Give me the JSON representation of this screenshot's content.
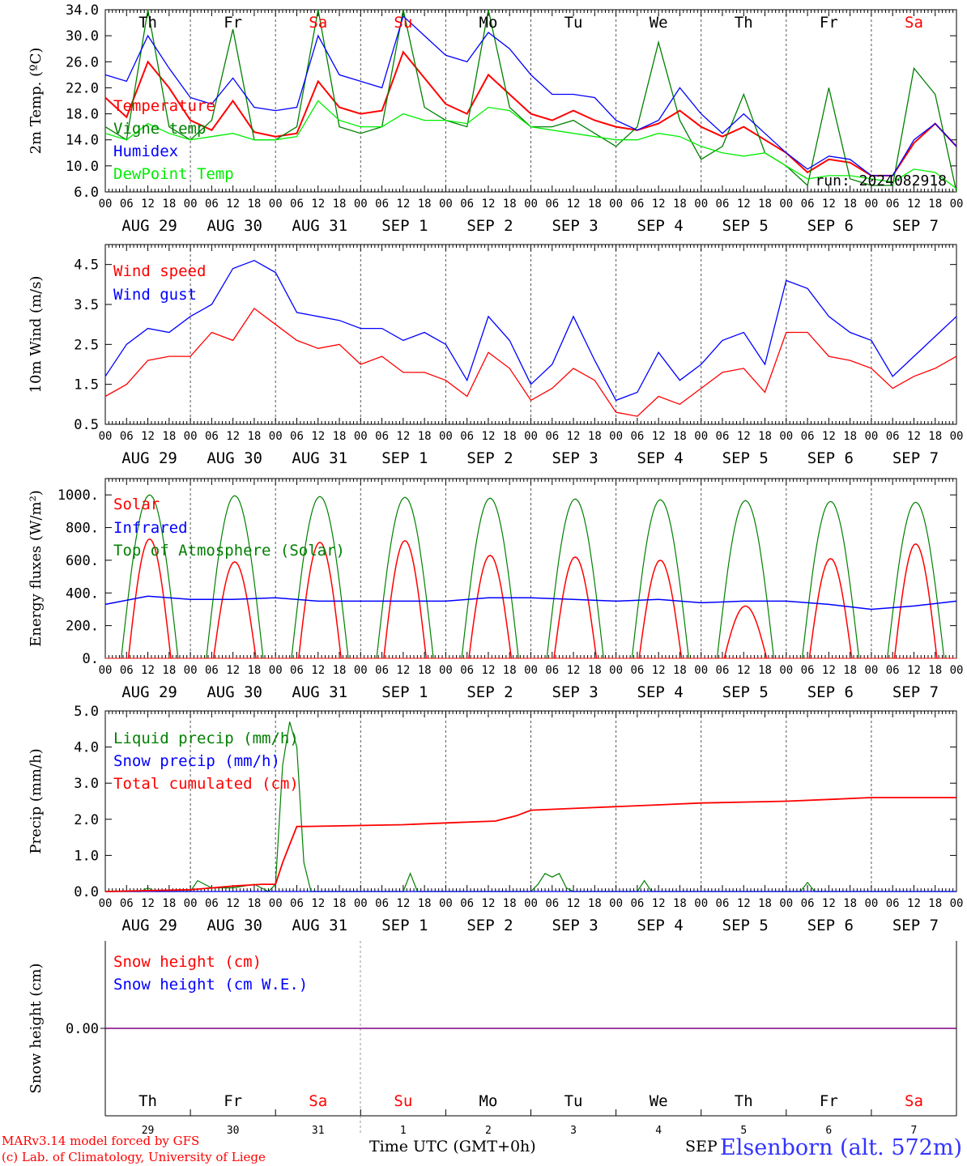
{
  "page": {
    "credit_line1": "MARv3.14 model forced by GFS",
    "credit_line2": "(c) Lab. of Climatology, University of Liege",
    "time_axis_label": "Time UTC (GMT+0h)",
    "month_label": "SEP",
    "station": "Elsenborn (alt. 572m)",
    "run_label": "run: 2024082918"
  },
  "colors": {
    "red": "#ff0000",
    "blue": "#0000ff",
    "dark_green": "#008000",
    "light_green": "#00ee00",
    "purple": "#800080",
    "sunday_red": "#ff0000"
  },
  "axis_common": {
    "hour_ticks": [
      "00",
      "06",
      "12",
      "18"
    ],
    "day_labels": [
      "AUG 29",
      "AUG 30",
      "AUG 31",
      "SEP  1",
      "SEP  2",
      "SEP  3",
      "SEP  4",
      "SEP  5",
      "SEP  6",
      "SEP  7"
    ],
    "weekdays": [
      "Th",
      "Fr",
      "Sa",
      "Su",
      "Mo",
      "Tu",
      "We",
      "Th",
      "Fr",
      "Sa"
    ],
    "weekend_flags": [
      false,
      false,
      true,
      true,
      false,
      false,
      false,
      false,
      false,
      true
    ],
    "day_numbers": [
      "29",
      "30",
      "31",
      "1",
      "2",
      "3",
      "4",
      "5",
      "6",
      "7"
    ]
  },
  "chart_data": [
    {
      "type": "line",
      "ylabel": "2m Temp. (ºC)",
      "ylim": [
        6,
        34
      ],
      "yticks": [
        "6.0",
        "10.0",
        "14.0",
        "18.0",
        "22.0",
        "26.0",
        "30.0",
        "34.0"
      ],
      "x_unit": "hours since Aug 29 00 UTC",
      "series": [
        {
          "name": "Temperature",
          "color": "#ff0000",
          "x": [
            0,
            6,
            12,
            18,
            24,
            30,
            36,
            42,
            48,
            54,
            60,
            66,
            72,
            78,
            84,
            90,
            96,
            102,
            108,
            114,
            120,
            126,
            132,
            138,
            144,
            150,
            156,
            162,
            168,
            174,
            180,
            186,
            192,
            198,
            204,
            210,
            216,
            222,
            228,
            234,
            240
          ],
          "y": [
            20.5,
            17.5,
            26,
            22,
            17,
            15.5,
            20,
            15.2,
            14.5,
            15,
            23,
            19,
            18,
            18.5,
            27.5,
            23.5,
            19.5,
            18,
            24,
            21,
            18,
            17,
            18.5,
            17,
            16,
            15.5,
            16.5,
            18.5,
            16,
            14.5,
            16,
            14,
            12,
            9,
            11,
            10.5,
            8.5,
            8.5,
            13.5,
            16.5,
            13
          ]
        },
        {
          "name": "Vigne temp",
          "color": "#008000",
          "x": [
            0,
            6,
            12,
            18,
            24,
            30,
            36,
            42,
            48,
            54,
            60,
            66,
            72,
            78,
            84,
            90,
            96,
            102,
            108,
            114,
            120,
            126,
            132,
            138,
            144,
            150,
            156,
            162,
            168,
            174,
            180,
            186,
            192,
            198,
            204,
            210,
            216,
            222,
            228,
            234,
            240
          ],
          "y": [
            16,
            14,
            34,
            16,
            14,
            17,
            31,
            14,
            14,
            16,
            34,
            16,
            15,
            16,
            34,
            19,
            17,
            16,
            34,
            19,
            16,
            16,
            17,
            15,
            13,
            16,
            29,
            17,
            11,
            13,
            21,
            12,
            10,
            7,
            22,
            8,
            7,
            7,
            25,
            21,
            6
          ]
        },
        {
          "name": "Humidex",
          "color": "#0000ff",
          "x": [
            0,
            6,
            12,
            18,
            24,
            30,
            36,
            42,
            48,
            54,
            60,
            66,
            72,
            78,
            84,
            90,
            96,
            102,
            108,
            114,
            120,
            126,
            132,
            138,
            144,
            150,
            156,
            162,
            168,
            174,
            180,
            186,
            192,
            198,
            204,
            210,
            216,
            222,
            228,
            234,
            240
          ],
          "y": [
            24,
            23,
            30,
            25,
            20.5,
            19.5,
            23.5,
            19,
            18.5,
            19,
            30,
            24,
            23,
            22,
            33,
            30,
            27,
            26,
            30.5,
            28,
            24,
            21,
            21,
            20.5,
            17,
            15.5,
            17,
            22,
            18,
            15,
            18,
            15,
            12,
            9.5,
            11.5,
            11,
            8.5,
            8.5,
            14,
            16.5,
            13
          ]
        },
        {
          "name": "DewPoint Temp",
          "color": "#00ee00",
          "x": [
            0,
            6,
            12,
            18,
            24,
            30,
            36,
            42,
            48,
            54,
            60,
            66,
            72,
            78,
            84,
            90,
            96,
            102,
            108,
            114,
            120,
            126,
            132,
            138,
            144,
            150,
            156,
            162,
            168,
            174,
            180,
            186,
            192,
            198,
            204,
            210,
            216,
            222,
            228,
            234,
            240
          ],
          "y": [
            15,
            14,
            16.5,
            15,
            14,
            14.5,
            15,
            14,
            14,
            14.5,
            20,
            17,
            16,
            16,
            18,
            17,
            17,
            16.5,
            19,
            18.5,
            16,
            15.5,
            15,
            14.5,
            14,
            14,
            15,
            14.5,
            13,
            12,
            11.5,
            12,
            10,
            8,
            8.5,
            8.5,
            8,
            7.5,
            9.5,
            9,
            6.5
          ]
        }
      ]
    },
    {
      "type": "line",
      "ylabel": "10m Wind (m/s)",
      "ylim": [
        0.5,
        5.0
      ],
      "yticks": [
        "0.5",
        "1.5",
        "2.5",
        "3.5",
        "4.5"
      ],
      "series": [
        {
          "name": "Wind speed",
          "color": "#ff0000",
          "x": [
            0,
            6,
            12,
            18,
            24,
            30,
            36,
            42,
            48,
            54,
            60,
            66,
            72,
            78,
            84,
            90,
            96,
            102,
            108,
            114,
            120,
            126,
            132,
            138,
            144,
            150,
            156,
            162,
            168,
            174,
            180,
            186,
            192,
            198,
            204,
            210,
            216,
            222,
            228,
            234,
            240
          ],
          "y": [
            1.2,
            1.5,
            2.1,
            2.2,
            2.2,
            2.8,
            2.6,
            3.4,
            3.0,
            2.6,
            2.4,
            2.5,
            2.0,
            2.2,
            1.8,
            1.8,
            1.6,
            1.2,
            2.3,
            1.9,
            1.1,
            1.4,
            1.9,
            1.6,
            0.8,
            0.7,
            1.2,
            1.0,
            1.4,
            1.8,
            1.9,
            1.3,
            2.8,
            2.8,
            2.2,
            2.1,
            1.9,
            1.4,
            1.7,
            1.9,
            2.2
          ]
        },
        {
          "name": "Wind gust",
          "color": "#0000ff",
          "x": [
            0,
            6,
            12,
            18,
            24,
            30,
            36,
            42,
            48,
            54,
            60,
            66,
            72,
            78,
            84,
            90,
            96,
            102,
            108,
            114,
            120,
            126,
            132,
            138,
            144,
            150,
            156,
            162,
            168,
            174,
            180,
            186,
            192,
            198,
            204,
            210,
            216,
            222,
            228,
            234,
            240
          ],
          "y": [
            1.7,
            2.5,
            2.9,
            2.8,
            3.2,
            3.5,
            4.4,
            4.6,
            4.3,
            3.3,
            3.2,
            3.1,
            2.9,
            2.9,
            2.6,
            2.8,
            2.5,
            1.6,
            3.2,
            2.6,
            1.5,
            2.0,
            3.2,
            2.1,
            1.1,
            1.3,
            2.3,
            1.6,
            2.0,
            2.6,
            2.8,
            2.0,
            4.1,
            3.9,
            3.2,
            2.8,
            2.6,
            1.7,
            2.2,
            2.7,
            3.2
          ]
        }
      ]
    },
    {
      "type": "line",
      "ylabel": "Energy fluxes (W/m²)",
      "ylim": [
        0,
        1100
      ],
      "yticks": [
        "0.",
        "200.",
        "400.",
        "600.",
        "800.",
        "1000."
      ],
      "series": [
        {
          "name": "Solar",
          "color": "#ff0000",
          "peaks": [
            730,
            590,
            710,
            720,
            630,
            620,
            600,
            320,
            610,
            700
          ]
        },
        {
          "name": "Infrared",
          "color": "#0000ff",
          "x": [
            0,
            12,
            24,
            36,
            48,
            60,
            72,
            84,
            96,
            108,
            120,
            132,
            144,
            156,
            168,
            180,
            192,
            204,
            216,
            228,
            240
          ],
          "y": [
            330,
            380,
            360,
            360,
            370,
            350,
            350,
            350,
            350,
            370,
            370,
            360,
            350,
            360,
            340,
            350,
            350,
            330,
            300,
            320,
            350
          ]
        },
        {
          "name": "Top of Atmosphere (Solar)",
          "color": "#008000",
          "peaks": [
            1000,
            995,
            990,
            985,
            980,
            975,
            970,
            965,
            960,
            955
          ]
        }
      ]
    },
    {
      "type": "line",
      "ylabel": "Precip (mm/h)",
      "ylim": [
        0,
        5
      ],
      "yticks": [
        "0.0",
        "1.0",
        "2.0",
        "3.0",
        "4.0",
        "5.0"
      ],
      "series": [
        {
          "name": "Liquid precip (mm/h)",
          "color": "#008000",
          "x": [
            0,
            10,
            12,
            14,
            24,
            26,
            30,
            36,
            42,
            46,
            48,
            50,
            52,
            54,
            56,
            58,
            60,
            84,
            86,
            88,
            120,
            122,
            124,
            126,
            128,
            130,
            132,
            134,
            150,
            152,
            154,
            196,
            198,
            200,
            240
          ],
          "y": [
            0,
            0,
            0.1,
            0,
            0,
            0.3,
            0.1,
            0.1,
            0.2,
            0,
            0.2,
            3.5,
            4.7,
            4.0,
            0.8,
            0,
            0,
            0,
            0.5,
            0,
            0,
            0.2,
            0.5,
            0.4,
            0.5,
            0.1,
            0,
            0,
            0,
            0.3,
            0,
            0,
            0.25,
            0,
            0
          ]
        },
        {
          "name": "Snow precip (mm/h)",
          "color": "#0000ff",
          "x": [
            0,
            240
          ],
          "y": [
            0,
            0
          ]
        },
        {
          "name": "Total cumulated (cm)",
          "color": "#ff0000",
          "x": [
            0,
            24,
            36,
            44,
            48,
            50,
            52,
            54,
            56,
            84,
            96,
            110,
            116,
            120,
            132,
            144,
            156,
            168,
            192,
            204,
            216,
            240
          ],
          "y": [
            0,
            0.05,
            0.15,
            0.2,
            0.2,
            0.8,
            1.3,
            1.8,
            1.8,
            1.85,
            1.9,
            1.95,
            2.1,
            2.25,
            2.3,
            2.35,
            2.4,
            2.45,
            2.5,
            2.55,
            2.6,
            2.6
          ]
        }
      ]
    },
    {
      "type": "line",
      "ylabel": "Snow height (cm)",
      "yticks": [
        "0.00"
      ],
      "series": [
        {
          "name": "Snow height (cm)",
          "color": "#ff0000",
          "x": [
            0,
            240
          ],
          "y": [
            0,
            0
          ]
        },
        {
          "name": "Snow height (cm W.E.)",
          "color": "#0000ff",
          "x": [
            0,
            240
          ],
          "y": [
            0,
            0
          ]
        }
      ]
    }
  ]
}
